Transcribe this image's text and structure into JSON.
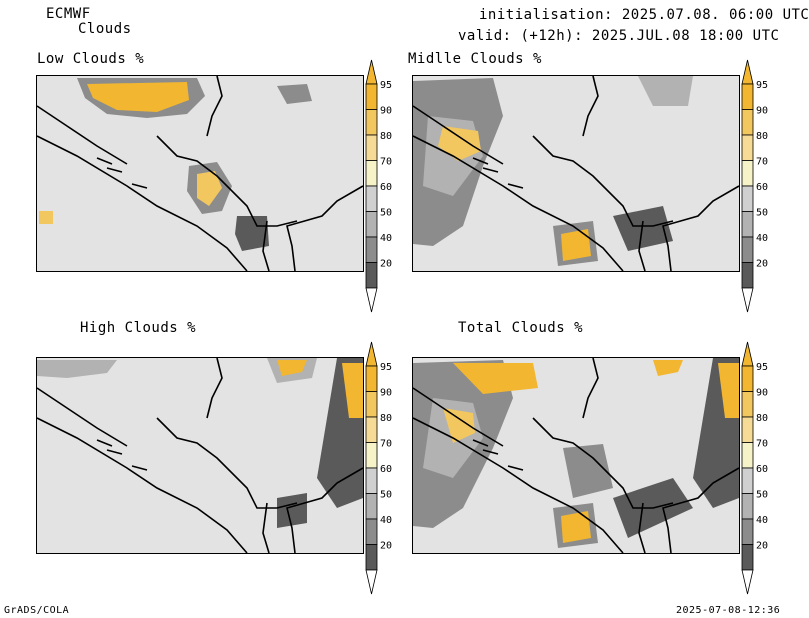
{
  "header": {
    "model": "ECMWF",
    "product": "Clouds",
    "init_line": "initialisation: 2025.07.08. 06:00 UTC",
    "valid_line": "valid: (+12h): 2025.JUL.08 18:00 UTC"
  },
  "panels": [
    {
      "title": "Low Clouds %"
    },
    {
      "title": "Midlle Clouds %"
    },
    {
      "title": "High Clouds %"
    },
    {
      "title": "Total Clouds %"
    }
  ],
  "colorbar": {
    "ticks": [
      "95",
      "90",
      "80",
      "70",
      "60",
      "50",
      "40",
      "20"
    ],
    "colors": {
      "c95": "#f2b630",
      "c90": "#f3c760",
      "c80": "#f6db96",
      "c70": "#f7f3c8",
      "c60": "#d0d0d0",
      "c50": "#b2b2b2",
      "c40": "#8c8c8c",
      "c20": "#5a5a5a"
    }
  },
  "footer": {
    "left": "GrADS/COLA",
    "right": "2025-07-08-12:36"
  }
}
